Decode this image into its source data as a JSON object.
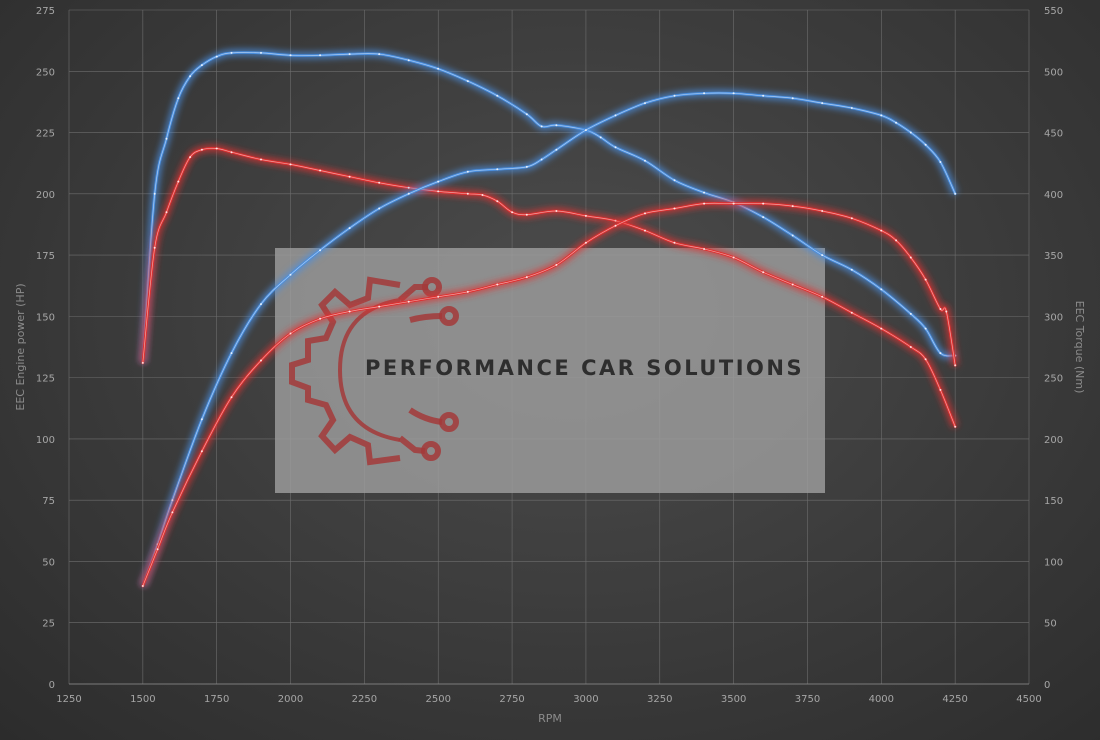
{
  "chart_data": {
    "type": "line",
    "xlabel": "RPM",
    "ylabel_left": "EEC Engine power (HP)",
    "ylabel_right": "EEC Torque (Nm)",
    "xlim": [
      1250,
      4500
    ],
    "ylim_left": [
      0,
      275
    ],
    "ylim_right": [
      0,
      550
    ],
    "x_ticks": [
      1250,
      1500,
      1750,
      2000,
      2250,
      2500,
      2750,
      3000,
      3250,
      3500,
      3750,
      4000,
      4250,
      4500
    ],
    "y_left_ticks": [
      0,
      25,
      50,
      75,
      100,
      125,
      150,
      175,
      200,
      225,
      250,
      275
    ],
    "y_right_ticks": [
      0,
      50,
      100,
      150,
      200,
      250,
      300,
      350,
      400,
      450,
      500,
      550
    ],
    "grid": true,
    "series": [
      {
        "id": "tuned-torque",
        "axis": "right",
        "color": "#4a8fe0",
        "x": [
          1500,
          1540,
          1580,
          1620,
          1660,
          1700,
          1750,
          1800,
          1900,
          2000,
          2100,
          2200,
          2300,
          2400,
          2500,
          2600,
          2700,
          2800,
          2850,
          2900,
          3000,
          3050,
          3100,
          3200,
          3300,
          3400,
          3500,
          3600,
          3700,
          3800,
          3900,
          4000,
          4100,
          4150,
          4200,
          4250
        ],
        "y": [
          262,
          400,
          445,
          478,
          496,
          505,
          512,
          515,
          515,
          513,
          513,
          514,
          514,
          509,
          502,
          492,
          480,
          465,
          455,
          456,
          452,
          446,
          438,
          427,
          411,
          401,
          393,
          381,
          366,
          350,
          338,
          322,
          302,
          290,
          270,
          268
        ]
      },
      {
        "id": "stock-torque",
        "axis": "right",
        "color": "#e03030",
        "x": [
          1500,
          1540,
          1580,
          1620,
          1660,
          1700,
          1750,
          1800,
          1900,
          2000,
          2100,
          2200,
          2300,
          2400,
          2500,
          2600,
          2650,
          2700,
          2750,
          2800,
          2900,
          3000,
          3100,
          3200,
          3300,
          3400,
          3500,
          3600,
          3700,
          3800,
          3900,
          4000,
          4100,
          4150,
          4200,
          4250
        ],
        "y": [
          262,
          356,
          385,
          410,
          430,
          436,
          437,
          434,
          428,
          424,
          419,
          414,
          409,
          405,
          402,
          400,
          399,
          394,
          385,
          383,
          386,
          382,
          378,
          370,
          360,
          355,
          348,
          336,
          326,
          316,
          303,
          290,
          275,
          265,
          240,
          210
        ]
      },
      {
        "id": "tuned-power",
        "axis": "left",
        "color": "#4a8fe0",
        "x": [
          1500,
          1550,
          1600,
          1700,
          1800,
          1900,
          2000,
          2100,
          2200,
          2300,
          2400,
          2500,
          2600,
          2700,
          2800,
          2850,
          2900,
          3000,
          3100,
          3200,
          3300,
          3400,
          3500,
          3600,
          3700,
          3800,
          3900,
          4000,
          4050,
          4100,
          4150,
          4200,
          4250
        ],
        "y": [
          40,
          57,
          75,
          108,
          135,
          155,
          167,
          177,
          186,
          194,
          200,
          205,
          209,
          210,
          211,
          214,
          218,
          226,
          232,
          237,
          240,
          241,
          241,
          240,
          239,
          237,
          235,
          232,
          229,
          225,
          220,
          213,
          200
        ]
      },
      {
        "id": "stock-power",
        "axis": "left",
        "color": "#e03030",
        "x": [
          1500,
          1550,
          1600,
          1700,
          1800,
          1900,
          2000,
          2100,
          2200,
          2300,
          2400,
          2500,
          2600,
          2700,
          2800,
          2900,
          3000,
          3100,
          3200,
          3300,
          3400,
          3500,
          3600,
          3700,
          3800,
          3900,
          4000,
          4050,
          4100,
          4150,
          4200,
          4220,
          4250
        ],
        "y": [
          40,
          55,
          70,
          95,
          117,
          132,
          143,
          149,
          152,
          154,
          156,
          158,
          160,
          163,
          166,
          171,
          180,
          187,
          192,
          194,
          196,
          196,
          196,
          195,
          193,
          190,
          185,
          181,
          174,
          165,
          153,
          152,
          130
        ]
      }
    ]
  },
  "watermark": {
    "text": "PERFORMANCE CAR SOLUTIONS",
    "logo_icon": "gear-circuit-logo",
    "logo_color": "#a33a3a"
  }
}
